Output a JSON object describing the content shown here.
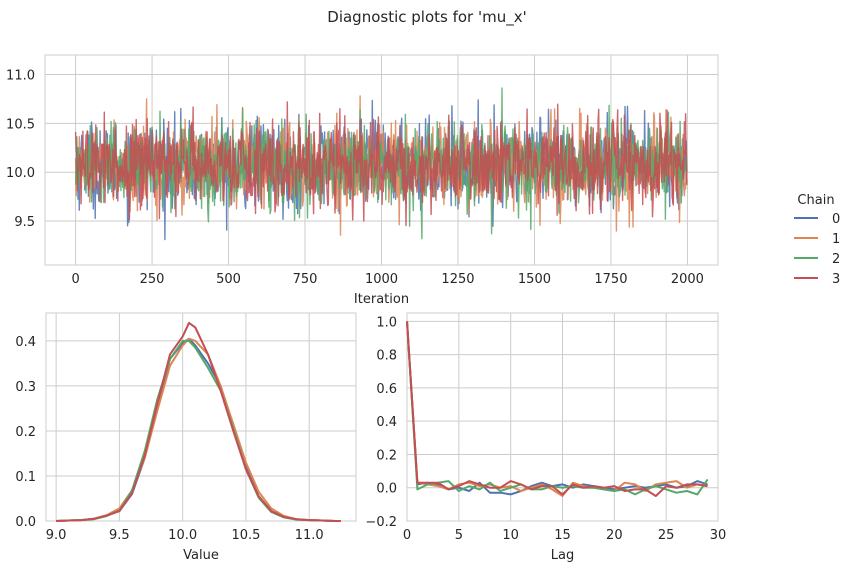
{
  "title": "Diagnostic plots for 'mu_x'",
  "legend": {
    "title": "Chain",
    "placement": "right",
    "entries": [
      {
        "label": "0",
        "color": "#4c72b0"
      },
      {
        "label": "1",
        "color": "#dd8452"
      },
      {
        "label": "2",
        "color": "#55a868"
      },
      {
        "label": "3",
        "color": "#c44e52"
      }
    ]
  },
  "chart_data": [
    {
      "type": "line",
      "panel": "trace",
      "xlabel": "Iteration",
      "ylabel": "",
      "xlim": [
        -100,
        2100
      ],
      "ylim": [
        9.05,
        11.2
      ],
      "xticks": [
        0,
        250,
        500,
        750,
        1000,
        1250,
        1500,
        1750,
        2000
      ],
      "yticks": [
        9.5,
        10.0,
        10.5,
        11.0
      ],
      "xtick_labels": [
        "0",
        "250",
        "500",
        "750",
        "1000",
        "1250",
        "1500",
        "1750",
        "2000"
      ],
      "ytick_labels": [
        "9.5",
        "10.0",
        "10.5",
        "11.0"
      ],
      "grid": true,
      "series_summary": [
        {
          "name": "0",
          "n_iterations": 2000,
          "center": 10.08,
          "spread": 0.22,
          "min": 9.28,
          "max": 10.87
        },
        {
          "name": "1",
          "n_iterations": 2000,
          "center": 10.08,
          "spread": 0.22,
          "min": 9.33,
          "max": 10.78
        },
        {
          "name": "2",
          "n_iterations": 2000,
          "center": 10.08,
          "spread": 0.22,
          "min": 9.14,
          "max": 10.92
        },
        {
          "name": "3",
          "n_iterations": 2000,
          "center": 10.08,
          "spread": 0.22,
          "min": 9.26,
          "max": 11.11
        }
      ]
    },
    {
      "type": "line",
      "panel": "density",
      "xlabel": "Value",
      "ylabel": "",
      "xlim": [
        8.92,
        11.37
      ],
      "ylim": [
        0,
        0.462
      ],
      "xticks": [
        9.0,
        9.5,
        10.0,
        10.5,
        11.0
      ],
      "yticks": [
        0.0,
        0.1,
        0.2,
        0.3,
        0.4
      ],
      "xtick_labels": [
        "9.0",
        "9.5",
        "10.0",
        "10.5",
        "11.0"
      ],
      "ytick_labels": [
        "0.0",
        "0.1",
        "0.2",
        "0.3",
        "0.4"
      ],
      "grid": true,
      "x": [
        9.0,
        9.1,
        9.2,
        9.3,
        9.4,
        9.5,
        9.6,
        9.7,
        9.8,
        9.9,
        10.0,
        10.05,
        10.1,
        10.2,
        10.3,
        10.4,
        10.5,
        10.6,
        10.7,
        10.8,
        10.9,
        11.0,
        11.1,
        11.2,
        11.25
      ],
      "series": [
        {
          "name": "0",
          "values": [
            0.0,
            0.001,
            0.002,
            0.005,
            0.012,
            0.022,
            0.06,
            0.14,
            0.25,
            0.36,
            0.395,
            0.405,
            0.39,
            0.35,
            0.3,
            0.21,
            0.12,
            0.055,
            0.022,
            0.009,
            0.004,
            0.002,
            0.001,
            0.0,
            0.0
          ]
        },
        {
          "name": "1",
          "values": [
            0.0,
            0.001,
            0.002,
            0.005,
            0.013,
            0.028,
            0.068,
            0.14,
            0.245,
            0.345,
            0.39,
            0.405,
            0.4,
            0.37,
            0.3,
            0.215,
            0.13,
            0.065,
            0.028,
            0.011,
            0.004,
            0.002,
            0.001,
            0.0,
            0.0
          ]
        },
        {
          "name": "2",
          "values": [
            0.0,
            0.001,
            0.002,
            0.004,
            0.011,
            0.023,
            0.068,
            0.155,
            0.27,
            0.36,
            0.4,
            0.4,
            0.385,
            0.34,
            0.29,
            0.205,
            0.115,
            0.052,
            0.02,
            0.008,
            0.003,
            0.002,
            0.001,
            0.0,
            0.0
          ]
        },
        {
          "name": "3",
          "values": [
            0.0,
            0.001,
            0.002,
            0.005,
            0.012,
            0.022,
            0.062,
            0.145,
            0.26,
            0.37,
            0.41,
            0.44,
            0.43,
            0.37,
            0.29,
            0.2,
            0.115,
            0.055,
            0.022,
            0.009,
            0.004,
            0.002,
            0.001,
            0.0,
            0.0
          ]
        }
      ]
    },
    {
      "type": "line",
      "panel": "autocorrelation",
      "xlabel": "Lag",
      "ylabel": "",
      "xlim": [
        0,
        30
      ],
      "ylim": [
        -0.2,
        1.05
      ],
      "xticks": [
        0,
        5,
        10,
        15,
        20,
        25,
        30
      ],
      "yticks": [
        -0.2,
        0.0,
        0.2,
        0.4,
        0.6,
        0.8,
        1.0
      ],
      "xtick_labels": [
        "0",
        "5",
        "10",
        "15",
        "20",
        "25",
        "30"
      ],
      "ytick_labels": [
        "−0.2",
        "0.0",
        "0.2",
        "0.4",
        "0.6",
        "0.8",
        "1.0"
      ],
      "grid": true,
      "x": [
        0,
        1,
        2,
        3,
        4,
        5,
        6,
        7,
        8,
        9,
        10,
        11,
        12,
        13,
        14,
        15,
        16,
        17,
        18,
        19,
        20,
        21,
        22,
        23,
        24,
        25,
        26,
        27,
        28,
        29
      ],
      "series": [
        {
          "name": "0",
          "values": [
            1.0,
            0.02,
            0.03,
            0.02,
            -0.01,
            0.0,
            -0.02,
            0.03,
            -0.03,
            -0.03,
            -0.04,
            -0.02,
            0.01,
            0.03,
            0.01,
            0.02,
            0.0,
            0.02,
            0.01,
            0.0,
            -0.01,
            0.0,
            0.01,
            0.0,
            0.01,
            0.02,
            0.0,
            0.01,
            0.04,
            0.02
          ]
        },
        {
          "name": "1",
          "values": [
            1.0,
            0.03,
            0.02,
            0.01,
            -0.01,
            0.02,
            0.03,
            0.01,
            0.02,
            0.0,
            0.01,
            -0.02,
            0.0,
            0.02,
            -0.01,
            -0.05,
            0.03,
            0.01,
            0.0,
            -0.01,
            -0.02,
            0.03,
            0.02,
            -0.02,
            0.02,
            0.03,
            0.04,
            0.0,
            0.02,
            0.01
          ]
        },
        {
          "name": "2",
          "values": [
            1.0,
            -0.01,
            0.02,
            0.03,
            0.04,
            -0.02,
            0.01,
            -0.01,
            0.03,
            -0.02,
            0.0,
            0.02,
            -0.01,
            -0.01,
            0.01,
            0.0,
            0.01,
            0.0,
            0.0,
            -0.01,
            -0.02,
            -0.01,
            -0.04,
            -0.01,
            0.01,
            -0.01,
            -0.03,
            -0.02,
            -0.04,
            0.05
          ]
        },
        {
          "name": "3",
          "values": [
            1.0,
            0.03,
            0.03,
            0.03,
            -0.01,
            0.01,
            0.04,
            0.02,
            0.0,
            0.0,
            0.04,
            0.02,
            -0.01,
            0.01,
            0.01,
            -0.04,
            0.02,
            0.0,
            0.01,
            0.0,
            0.01,
            -0.02,
            -0.01,
            -0.01,
            -0.05,
            0.01,
            0.0,
            0.02,
            0.02,
            0.01
          ]
        }
      ]
    }
  ]
}
